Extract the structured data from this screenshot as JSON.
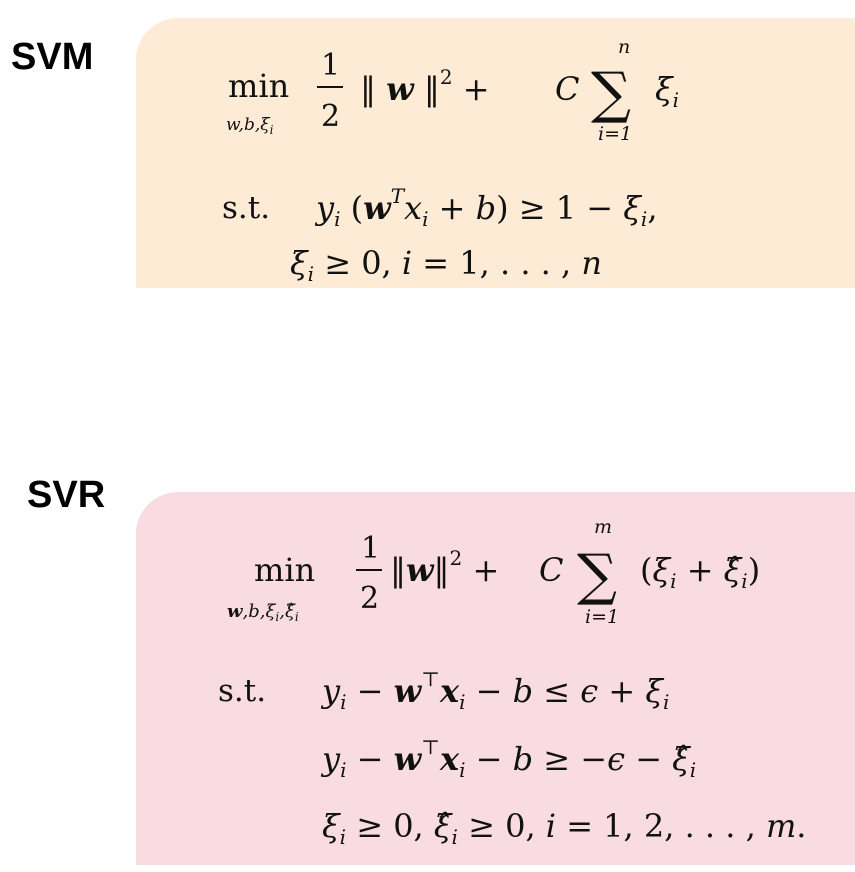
{
  "sections": {
    "svm": {
      "label": "SVM",
      "color": "#fdebd5",
      "objective": {
        "min": "min",
        "min_sub": "w,b,ξi",
        "frac_num": "1",
        "frac_den": "2",
        "norm": "‖ w ‖²  +",
        "C": "C",
        "sum_top": "n",
        "sum_bottom": "i=1",
        "summand": "ξi"
      },
      "constraints": {
        "st": "s.t.",
        "line1": "yi (wTxi + b) ≥ 1 − ξi,",
        "line2": "ξi ≥ 0, i = 1, . . . , n"
      }
    },
    "svr": {
      "label": "SVR",
      "color": "#f9dce1",
      "objective": {
        "min": "min",
        "min_sub": "w,b,ξi,ξ̂i",
        "frac_num": "1",
        "frac_den": "2",
        "norm": "‖w‖² +",
        "C": "C",
        "sum_top": "m",
        "sum_bottom": "i=1",
        "summand": "(ξi + ξ̂i)"
      },
      "constraints": {
        "st": "s.t.",
        "line1": "yi − w⊤xi − b ≤ ϵ + ξi",
        "line2": "yi − w⊤xi − b ≥ −ϵ − ξ̂i",
        "line3": "ξi ≥ 0, ξ̂i ≥ 0, i = 1, 2, . . . , m."
      }
    }
  }
}
